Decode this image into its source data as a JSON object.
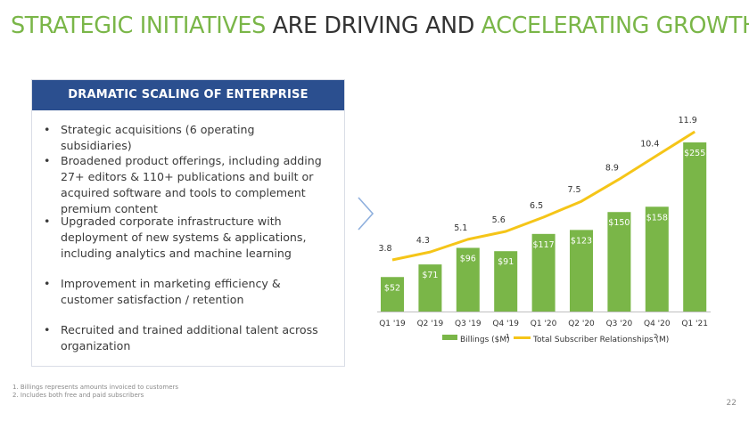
{
  "headline": {
    "part1": "STRATEGIC INITIATIVES",
    "part2": " ARE DRIVING AND ",
    "part3": "ACCELERATING GROWTH"
  },
  "panel": {
    "title": "DRAMATIC SCALING OF ENTERPRISE",
    "bullets": [
      "Strategic acquisitions (6 operating subsidiaries)",
      "Broadened product offerings, including adding 27+ editors & 110+ publications and built or acquired software and tools to complement premium content",
      "Upgraded corporate infrastructure with deployment of new systems & applications, including analytics and machine learning",
      "Improvement in marketing efficiency & customer satisfaction / retention",
      "Recruited and trained additional talent across organization"
    ]
  },
  "chart_data": {
    "type": "bar",
    "categories": [
      "Q1 '19",
      "Q2 '19",
      "Q3 '19",
      "Q4 '19",
      "Q1 '20",
      "Q2 '20",
      "Q3 '20",
      "Q4 '20",
      "Q1 '21"
    ],
    "series": [
      {
        "name": "Billings ($M)",
        "type": "bar",
        "values": [
          52,
          71,
          96,
          91,
          117,
          123,
          150,
          158,
          255
        ],
        "labels": [
          "$52",
          "$71",
          "$96",
          "$91",
          "$117",
          "$123",
          "$150",
          "$158",
          "$255"
        ],
        "color": "#7ab648"
      },
      {
        "name": "Total Subscriber Relationships (M)",
        "type": "line",
        "values": [
          3.8,
          4.3,
          5.1,
          5.6,
          6.5,
          7.5,
          8.9,
          10.4,
          11.9
        ],
        "labels": [
          "3.8",
          "4.3",
          "5.1",
          "5.6",
          "6.5",
          "7.5",
          "8.9",
          "10.4",
          "11.9"
        ],
        "color": "#f5c518"
      }
    ],
    "legend": [
      {
        "label": "Billings ($M)",
        "sup": "1"
      },
      {
        "label": "Total Subscriber Relationships (M)",
        "sup": "2"
      }
    ],
    "legend_position": "bottom",
    "grid": false,
    "bar_ylim": [
      0,
      280
    ],
    "line_ylim": [
      0,
      12
    ]
  },
  "footnotes": [
    "1. Billings represents amounts invoiced to customers",
    "2. Includes both free and paid subscribers"
  ],
  "page_number": "22",
  "colors": {
    "accent_green": "#7ab648",
    "panel_blue": "#2b4f8f",
    "line_yellow": "#f5c518"
  }
}
